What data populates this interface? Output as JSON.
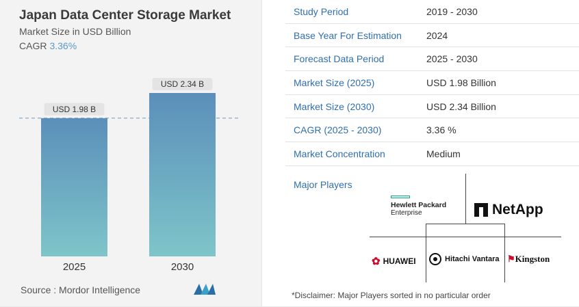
{
  "title": "Japan Data Center Storage Market",
  "subtitle": "Market Size in USD Billion",
  "cagr_label": "CAGR",
  "cagr_value": "3.36%",
  "source": "Source :  Mordor Intelligence",
  "chart_data": {
    "type": "bar",
    "categories": [
      "2025",
      "2030"
    ],
    "values": [
      1.98,
      2.34
    ],
    "data_labels": [
      "USD 1.98 B",
      "USD 2.34 B"
    ],
    "title": "Japan Data Center Storage Market",
    "subtitle": "Market Size in USD Billion",
    "ylim": [
      0,
      2.34
    ],
    "reference_line_value": 1.98,
    "bar_gradient": [
      "#5b8fba",
      "#7ec5c9"
    ]
  },
  "table": [
    {
      "key": "Study Period",
      "value": "2019 - 2030"
    },
    {
      "key": "Base Year For Estimation",
      "value": "2024"
    },
    {
      "key": "Forecast Data Period",
      "value": "2025 - 2030"
    },
    {
      "key": "Market Size (2025)",
      "value": "USD 1.98 Billion"
    },
    {
      "key": "Market Size (2030)",
      "value": "USD 2.34 Billion"
    },
    {
      "key": "CAGR (2025 - 2030)",
      "value": "3.36 %"
    },
    {
      "key": "Market Concentration",
      "value": "Medium"
    }
  ],
  "players_label": "Major Players",
  "players": {
    "hpe_line1": "Hewlett Packard",
    "hpe_line2": "Enterprise",
    "netapp": "NetApp",
    "huawei": "HUAWEI",
    "hitachi": "Hitachi Vantara",
    "kingston": "Kingston"
  },
  "disclaimer": "*Disclaimer: Major Players sorted in no particular order",
  "colors": {
    "key_text": "#2f6fae",
    "accent": "#5b9ac6"
  }
}
